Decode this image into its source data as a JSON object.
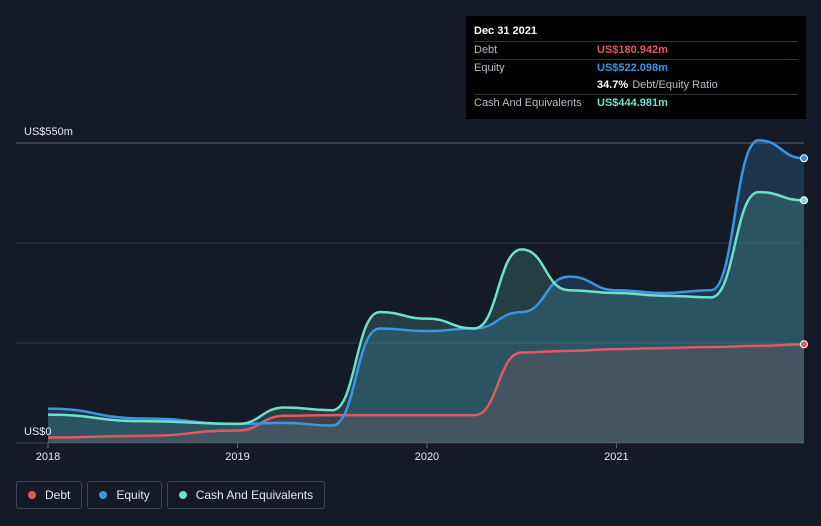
{
  "tooltip": {
    "date": "Dec 31 2021",
    "debt_label": "Debt",
    "debt_value": "US$180.942m",
    "equity_label": "Equity",
    "equity_value": "US$522.098m",
    "ratio_value": "34.7%",
    "ratio_label": "Debt/Equity Ratio",
    "cash_label": "Cash And Equivalents",
    "cash_value": "US$444.981m"
  },
  "legend": [
    {
      "label": "Debt",
      "color": "#e05a5f"
    },
    {
      "label": "Equity",
      "color": "#3b95e0"
    },
    {
      "label": "Cash And Equivalents",
      "color": "#6ee0c8"
    }
  ],
  "colors": {
    "debt": "#e05a5f",
    "equity": "#3b95e0",
    "cash": "#6ee0c8",
    "background": "#151b26",
    "grid": "#2c3441"
  },
  "chart_data": {
    "type": "area",
    "title": "",
    "xlabel": "",
    "ylabel": "",
    "y_top_label": "US$550m",
    "y_bottom_label": "US$0",
    "ylim": [
      0,
      550
    ],
    "xlim": [
      2018,
      2021.99
    ],
    "x_ticks": [
      2018,
      2019,
      2020,
      2021
    ],
    "x_tick_labels": [
      "2018",
      "2019",
      "2020",
      "2021"
    ],
    "grid": true,
    "series": [
      {
        "name": "Debt",
        "color": "#e05a5f",
        "x": [
          2018.0,
          2018.5,
          2019.0,
          2019.25,
          2019.5,
          2019.75,
          2020.0,
          2020.25,
          2020.5,
          2020.75,
          2021.0,
          2021.25,
          2021.5,
          2021.75,
          2021.99
        ],
        "y": [
          10,
          13,
          23,
          50,
          51,
          51,
          51,
          51,
          166,
          169,
          172,
          174,
          176,
          178,
          181
        ]
      },
      {
        "name": "Equity",
        "color": "#3b95e0",
        "x": [
          2018.0,
          2018.5,
          2019.0,
          2019.25,
          2019.5,
          2019.75,
          2020.0,
          2020.25,
          2020.5,
          2020.75,
          2021.0,
          2021.25,
          2021.5,
          2021.75,
          2021.99
        ],
        "y": [
          63,
          45,
          35,
          37,
          32,
          210,
          205,
          210,
          240,
          305,
          280,
          275,
          280,
          555,
          522
        ]
      },
      {
        "name": "Cash And Equivalents",
        "color": "#6ee0c8",
        "x": [
          2018.0,
          2018.5,
          2019.0,
          2019.25,
          2019.5,
          2019.75,
          2020.0,
          2020.25,
          2020.5,
          2020.75,
          2021.0,
          2021.25,
          2021.5,
          2021.75,
          2021.99
        ],
        "y": [
          52,
          40,
          35,
          65,
          60,
          240,
          228,
          210,
          355,
          280,
          275,
          270,
          267,
          460,
          445
        ]
      }
    ]
  }
}
